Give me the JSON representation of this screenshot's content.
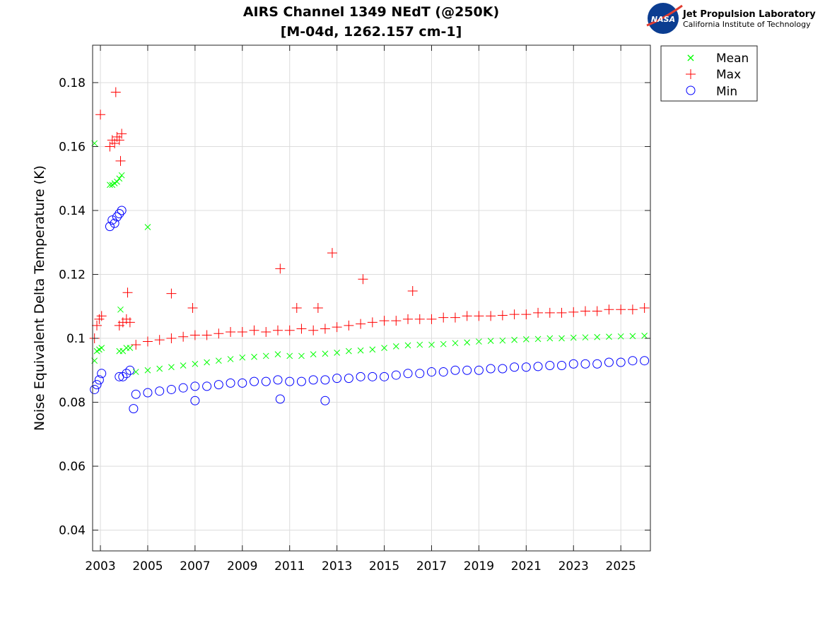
{
  "header": {
    "lab_name": "Jet Propulsion Laboratory",
    "lab_subtitle": "California Institute of Technology",
    "logo_text": "NASA"
  },
  "chart_data": {
    "type": "scatter",
    "title": [
      "AIRS Channel 1349 NEdT (@250K)",
      "[M-04d, 1262.157 cm-1]"
    ],
    "xlabel": "",
    "ylabel": "Noise Equivalent Delta Temperature (K)",
    "xlim": [
      2002.67,
      2026.25
    ],
    "ylim": [
      0.0335,
      0.1917
    ],
    "xticks": [
      2003,
      2005,
      2007,
      2009,
      2011,
      2013,
      2015,
      2017,
      2019,
      2021,
      2023,
      2025
    ],
    "yticks": [
      0.04,
      0.06,
      0.08,
      0.1,
      0.12,
      0.14,
      0.16,
      0.18
    ],
    "ytick_labels": [
      "0.04",
      "0.06",
      "0.08",
      "0.1",
      "0.12",
      "0.14",
      "0.16",
      "0.18"
    ],
    "grid": true,
    "legend_position": "outside-top-right",
    "series": [
      {
        "name": "Mean",
        "marker": "x",
        "color": "#00ff00",
        "x": [
          2002.75,
          2002.85,
          2002.95,
          2003.05,
          2003.4,
          2003.5,
          2003.6,
          2003.7,
          2003.8,
          2003.9,
          2003.8,
          2003.95,
          2004.1,
          2004.25,
          2004.5,
          2005,
          2005.5,
          2006,
          2006.5,
          2007,
          2007.5,
          2008,
          2008.5,
          2009,
          2009.5,
          2010,
          2010.5,
          2011,
          2011.5,
          2012,
          2012.5,
          2013,
          2013.5,
          2014,
          2014.5,
          2015,
          2015.5,
          2016,
          2016.5,
          2017,
          2017.5,
          2018,
          2018.5,
          2019,
          2019.5,
          2020,
          2020.5,
          2021,
          2021.5,
          2022,
          2022.5,
          2023,
          2023.5,
          2024,
          2024.5,
          2025,
          2025.5,
          2026,
          2005.0,
          2002.75,
          2003.85
        ],
        "y": [
          0.093,
          0.096,
          0.0965,
          0.097,
          0.148,
          0.148,
          0.1485,
          0.149,
          0.15,
          0.151,
          0.096,
          0.096,
          0.097,
          0.097,
          0.0895,
          0.09,
          0.0905,
          0.091,
          0.0915,
          0.092,
          0.0925,
          0.093,
          0.0935,
          0.094,
          0.0942,
          0.0945,
          0.095,
          0.0945,
          0.0945,
          0.095,
          0.0952,
          0.0955,
          0.096,
          0.0962,
          0.0965,
          0.097,
          0.0975,
          0.0978,
          0.098,
          0.098,
          0.0982,
          0.0985,
          0.0987,
          0.099,
          0.0992,
          0.0993,
          0.0995,
          0.0997,
          0.0998,
          0.1,
          0.1,
          0.1002,
          0.1003,
          0.1004,
          0.1005,
          0.1006,
          0.1007,
          0.1008,
          0.1348,
          0.161,
          0.109
        ]
      },
      {
        "name": "Max",
        "marker": "+",
        "color": "#ff0000",
        "x": [
          2002.75,
          2002.85,
          2002.95,
          2003.05,
          2003.4,
          2003.5,
          2003.6,
          2003.7,
          2003.8,
          2003.9,
          2003.8,
          2003.95,
          2004.1,
          2004.25,
          2004.5,
          2005,
          2005.5,
          2006,
          2006.5,
          2007,
          2007.5,
          2008,
          2008.5,
          2009,
          2009.5,
          2010,
          2010.5,
          2011,
          2011.5,
          2012,
          2012.5,
          2013,
          2013.5,
          2014,
          2014.5,
          2015,
          2015.5,
          2016,
          2016.5,
          2017,
          2017.5,
          2018,
          2018.5,
          2019,
          2019.5,
          2020,
          2020.5,
          2021,
          2021.5,
          2022,
          2022.5,
          2023,
          2023.5,
          2024,
          2024.5,
          2025,
          2025.5,
          2026,
          2003.65,
          2003.0,
          2003.85,
          2004.15,
          2006.0,
          2006.9,
          2010.6,
          2012.8,
          2014.1,
          2016.2,
          2011.3,
          2012.2
        ],
        "y": [
          0.1,
          0.104,
          0.106,
          0.107,
          0.16,
          0.162,
          0.161,
          0.163,
          0.162,
          0.164,
          0.104,
          0.105,
          0.106,
          0.105,
          0.098,
          0.099,
          0.0995,
          0.1,
          0.1005,
          0.101,
          0.101,
          0.1015,
          0.102,
          0.102,
          0.1025,
          0.102,
          0.1025,
          0.1025,
          0.103,
          0.1025,
          0.103,
          0.1035,
          0.104,
          0.1045,
          0.105,
          0.1055,
          0.1055,
          0.106,
          0.106,
          0.106,
          0.1065,
          0.1065,
          0.107,
          0.107,
          0.107,
          0.1072,
          0.1075,
          0.1075,
          0.108,
          0.108,
          0.108,
          0.1082,
          0.1085,
          0.1085,
          0.109,
          0.109,
          0.109,
          0.1095,
          0.177,
          0.17,
          0.1555,
          0.1143,
          0.114,
          0.1095,
          0.1218,
          0.1267,
          0.1185,
          0.1148,
          0.1095,
          0.1095
        ]
      },
      {
        "name": "Min",
        "marker": "o",
        "color": "#0000ff",
        "x": [
          2002.75,
          2002.85,
          2002.95,
          2003.05,
          2003.4,
          2003.5,
          2003.6,
          2003.7,
          2003.8,
          2003.9,
          2003.8,
          2003.95,
          2004.1,
          2004.25,
          2004.5,
          2005,
          2005.5,
          2006,
          2006.5,
          2007,
          2007.5,
          2008,
          2008.5,
          2009,
          2009.5,
          2010,
          2010.5,
          2011,
          2011.5,
          2012,
          2012.5,
          2013,
          2013.5,
          2014,
          2014.5,
          2015,
          2015.5,
          2016,
          2016.5,
          2017,
          2017.5,
          2018,
          2018.5,
          2019,
          2019.5,
          2020,
          2020.5,
          2021,
          2021.5,
          2022,
          2022.5,
          2023,
          2023.5,
          2024,
          2024.5,
          2025,
          2025.5,
          2026,
          2004.4,
          2012.5,
          2010.6,
          2007.0
        ],
        "y": [
          0.084,
          0.0855,
          0.087,
          0.089,
          0.135,
          0.137,
          0.136,
          0.138,
          0.139,
          0.14,
          0.088,
          0.088,
          0.089,
          0.09,
          0.0825,
          0.083,
          0.0835,
          0.084,
          0.0845,
          0.085,
          0.085,
          0.0855,
          0.086,
          0.086,
          0.0865,
          0.0865,
          0.087,
          0.0865,
          0.0865,
          0.087,
          0.087,
          0.0875,
          0.0875,
          0.088,
          0.088,
          0.088,
          0.0885,
          0.089,
          0.089,
          0.0895,
          0.0895,
          0.09,
          0.09,
          0.09,
          0.0905,
          0.0905,
          0.091,
          0.091,
          0.0912,
          0.0915,
          0.0915,
          0.092,
          0.092,
          0.092,
          0.0925,
          0.0925,
          0.093,
          0.093,
          0.078,
          0.0805,
          0.081,
          0.0805
        ]
      }
    ]
  }
}
